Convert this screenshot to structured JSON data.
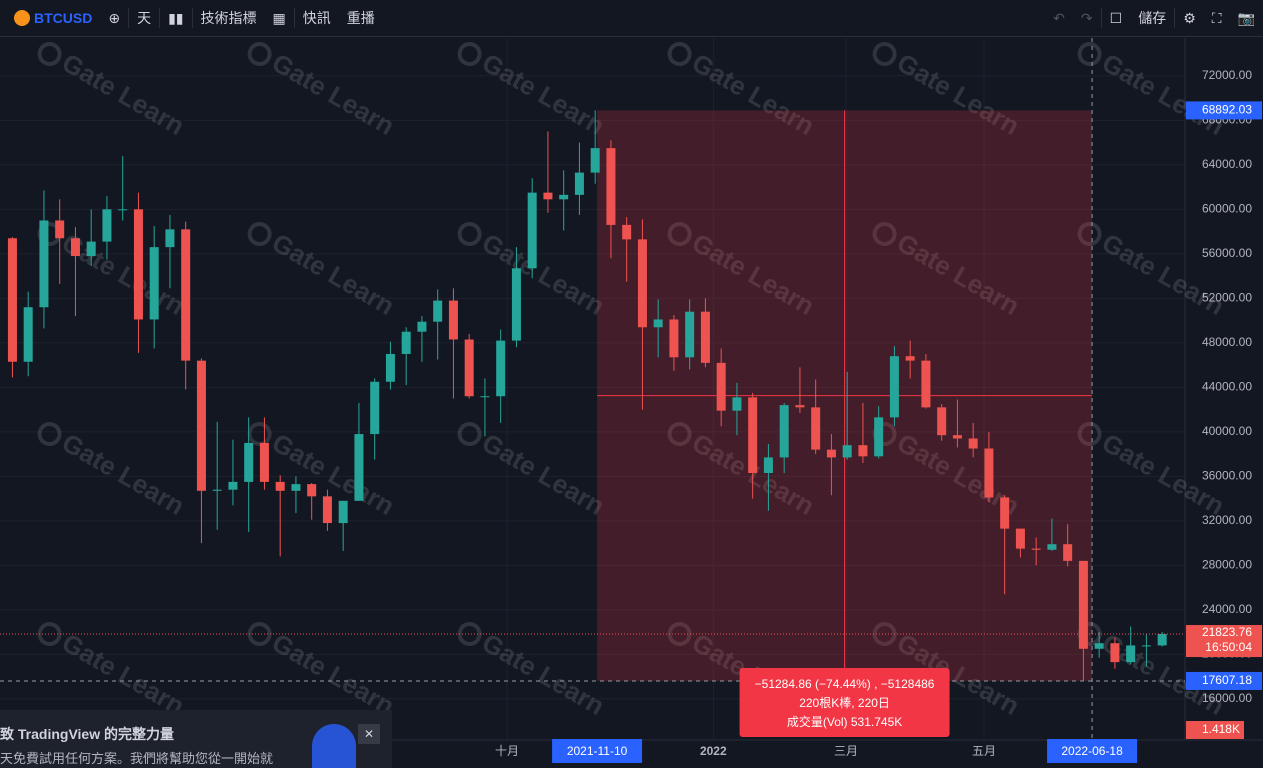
{
  "toolbar": {
    "symbol": "BTCUSD",
    "interval": "天",
    "indicators": "技術指標",
    "alerts": "快訊",
    "replay": "重播",
    "save": "儲存"
  },
  "chart_data": {
    "type": "candlestick",
    "categories": [
      null,
      null,
      null,
      null,
      null,
      null,
      null,
      null,
      null,
      null,
      null,
      null,
      null,
      null,
      null,
      null,
      null,
      null,
      null,
      null,
      null,
      null,
      null,
      null,
      null,
      null,
      null,
      null,
      null,
      null,
      null,
      null,
      null,
      null,
      null,
      null,
      null,
      null,
      null,
      null,
      null,
      null,
      null,
      null,
      null,
      null,
      null,
      null,
      null,
      null,
      null,
      null,
      null,
      null,
      null,
      null,
      null,
      null,
      null,
      null,
      null,
      null,
      null,
      null,
      null,
      null,
      null,
      null,
      null,
      null,
      null,
      null,
      null,
      null
    ],
    "open": [
      57400,
      46300,
      51200,
      59000,
      57400,
      55800,
      57100,
      60000,
      60000,
      50100,
      56600,
      58200,
      46400,
      34700,
      34800,
      35500,
      39000,
      35500,
      34700,
      35300,
      34200,
      31800,
      33800,
      39800,
      44500,
      47000,
      49000,
      49900,
      51800,
      48300,
      43200,
      43200,
      48200,
      54700,
      61500,
      60900,
      61300,
      63300,
      65500,
      58600,
      57300,
      49400,
      50100,
      46700,
      50800,
      46200,
      41900,
      43100,
      36300,
      37700,
      42400,
      42200,
      38400,
      37700,
      38800,
      37800,
      41300,
      46800,
      46400,
      42200,
      39700,
      39400,
      38500,
      34100,
      31300,
      29500,
      29400,
      29900,
      28400,
      20500,
      21000,
      19300,
      20800,
      20800
    ],
    "high": [
      57500,
      52600,
      61700,
      60900,
      58400,
      60000,
      61200,
      64800,
      61500,
      58500,
      59500,
      58900,
      46600,
      40900,
      39300,
      41300,
      41300,
      36100,
      36000,
      35400,
      34800,
      33800,
      42600,
      44800,
      48100,
      49400,
      50400,
      52800,
      52900,
      48800,
      44800,
      49200,
      56600,
      62800,
      67000,
      63500,
      66000,
      68900,
      66200,
      59300,
      59100,
      51900,
      50500,
      51900,
      52000,
      47500,
      44400,
      43500,
      38900,
      42600,
      45800,
      44700,
      39800,
      45400,
      42600,
      42300,
      47700,
      48200,
      47000,
      42500,
      42900,
      40800,
      40000,
      34300,
      31300,
      30500,
      32200,
      31700,
      28400,
      22000,
      21500,
      22500,
      21800,
      22000
    ],
    "low": [
      44900,
      45000,
      49300,
      53300,
      50400,
      54900,
      55500,
      59000,
      47100,
      47500,
      52900,
      43800,
      30000,
      31200,
      33400,
      31000,
      34800,
      28800,
      32700,
      32100,
      31100,
      29300,
      33800,
      37500,
      43800,
      44200,
      46300,
      46500,
      43000,
      43000,
      39600,
      40800,
      47600,
      53800,
      59700,
      58100,
      59500,
      62300,
      55600,
      53500,
      42000,
      46700,
      45500,
      45600,
      45800,
      40500,
      39700,
      34000,
      32900,
      36300,
      41700,
      38000,
      34300,
      37500,
      37200,
      37600,
      40500,
      44800,
      42100,
      39200,
      38600,
      37700,
      33700,
      25400,
      28700,
      28000,
      29300,
      27900,
      17600,
      19700,
      18700,
      19100,
      18900,
      20700
    ],
    "close": [
      46300,
      51200,
      59000,
      57400,
      55800,
      57100,
      60000,
      60000,
      50100,
      56600,
      58200,
      46400,
      34700,
      34800,
      35500,
      39000,
      35500,
      34700,
      35300,
      34200,
      31800,
      33800,
      39800,
      44500,
      47000,
      49000,
      49900,
      51800,
      48300,
      43200,
      43200,
      48200,
      54700,
      61500,
      60900,
      61300,
      63300,
      65500,
      58600,
      57300,
      49400,
      50100,
      46700,
      50800,
      46200,
      41900,
      43100,
      36300,
      37700,
      42400,
      42200,
      38400,
      37700,
      38800,
      37800,
      41300,
      46800,
      46400,
      42200,
      39700,
      39400,
      38500,
      34100,
      31300,
      29500,
      29400,
      29900,
      28400,
      20500,
      21000,
      19300,
      20800,
      20800,
      21823.76
    ],
    "up_color": "#26a69a",
    "down_color": "#ef5350",
    "xlim": [
      -0.79,
      74.45
    ],
    "xticks": [
      {
        "value": 31.4,
        "label": "十月"
      },
      {
        "value": 44.5,
        "label": "2022"
      },
      {
        "value": 52.93,
        "label": "三月"
      },
      {
        "value": 61.69,
        "label": "五月"
      }
    ],
    "ylim": [
      12300,
      75400
    ],
    "yticks": [
      {
        "value": 16000,
        "label": "16000.00"
      },
      {
        "value": 20000,
        "label": "20000.00"
      },
      {
        "value": 24000,
        "label": "24000.00"
      },
      {
        "value": 28000,
        "label": "28000.00"
      },
      {
        "value": 32000,
        "label": "32000.00"
      },
      {
        "value": 36000,
        "label": "36000.00"
      },
      {
        "value": 40000,
        "label": "40000.00"
      },
      {
        "value": 44000,
        "label": "44000.00"
      },
      {
        "value": 48000,
        "label": "48000.00"
      },
      {
        "value": 52000,
        "label": "52000.00"
      },
      {
        "value": 56000,
        "label": "56000.00"
      },
      {
        "value": 60000,
        "label": "60000.00"
      },
      {
        "value": 64000,
        "label": "64000.00"
      },
      {
        "value": 68000,
        "label": "68000.00"
      },
      {
        "value": 72000,
        "label": "72000.00"
      }
    ],
    "grid": true,
    "last_price": 21823.76,
    "countdown": "16:50:04",
    "crosshair": {
      "x": {
        "value": 68.55,
        "label": "2022-06-18"
      },
      "y": 17607.18
    },
    "measure": {
      "start": {
        "value": 37.12,
        "label": "2021-11-10"
      },
      "high": 68892.03,
      "low": 17607.18,
      "change": "−51284.86 (−74.44%) , −5128486",
      "bars": "220根K棒, 220日",
      "volume": "成交量(Vol) 531.745K",
      "color": "#f23645"
    },
    "volume_label": "1.418K",
    "watermark": "Gate Learn"
  },
  "promo": {
    "line1": "致 TradingView 的完整力量",
    "line2": "天免費試用任何方案。我們將幫助您從一開始就"
  }
}
